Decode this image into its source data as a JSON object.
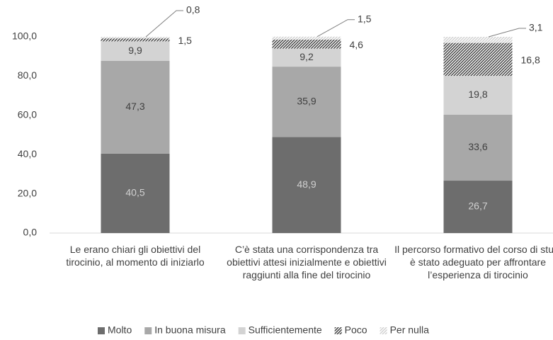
{
  "chart_data": {
    "type": "stacked_bar",
    "categories": [
      "Le erano chiari gli obiettivi del tirocinio, al momento di iniziarlo",
      "C’è stata una corrispondenza tra obiettivi attesi inizialmente e obiettivi raggiunti alla fine del tirocinio",
      "Il percorso formativo del corso di studi è stato adeguato per affrontare l’esperienza di tirocinio"
    ],
    "series": [
      {
        "name": "Molto",
        "color": "#6d6d6d",
        "values": [
          40.5,
          48.9,
          26.7
        ],
        "value_labels": [
          "40,5",
          "48,9",
          "26,7"
        ]
      },
      {
        "name": "In buona misura",
        "color": "#a8a8a8",
        "values": [
          47.3,
          35.9,
          33.6
        ],
        "value_labels": [
          "47,3",
          "35,9",
          "33,6"
        ]
      },
      {
        "name": "Sufficientemente",
        "color": "#d3d3d3",
        "values": [
          9.9,
          9.2,
          19.8
        ],
        "value_labels": [
          "9,9",
          "9,2",
          "19,8"
        ]
      },
      {
        "name": "Poco",
        "color": "#3a3a3a",
        "pattern": "hatch",
        "values": [
          1.5,
          4.6,
          16.8
        ],
        "value_labels": [
          "1,5",
          "4,6",
          "16,8"
        ]
      },
      {
        "name": "Per nulla",
        "color": "#cfcfcf",
        "pattern": "hatch",
        "values": [
          0.8,
          1.5,
          3.1
        ],
        "value_labels": [
          "0,8",
          "1,5",
          "3,1"
        ]
      }
    ],
    "ylim": [
      0,
      100
    ],
    "yticks": [
      {
        "value": 0,
        "label": "0,0"
      },
      {
        "value": 20,
        "label": "20,0"
      },
      {
        "value": 40,
        "label": "40,0"
      },
      {
        "value": 60,
        "label": "60,0"
      },
      {
        "value": 80,
        "label": "80,0"
      },
      {
        "value": 100,
        "label": "100,0"
      }
    ],
    "legend": "bottom"
  }
}
